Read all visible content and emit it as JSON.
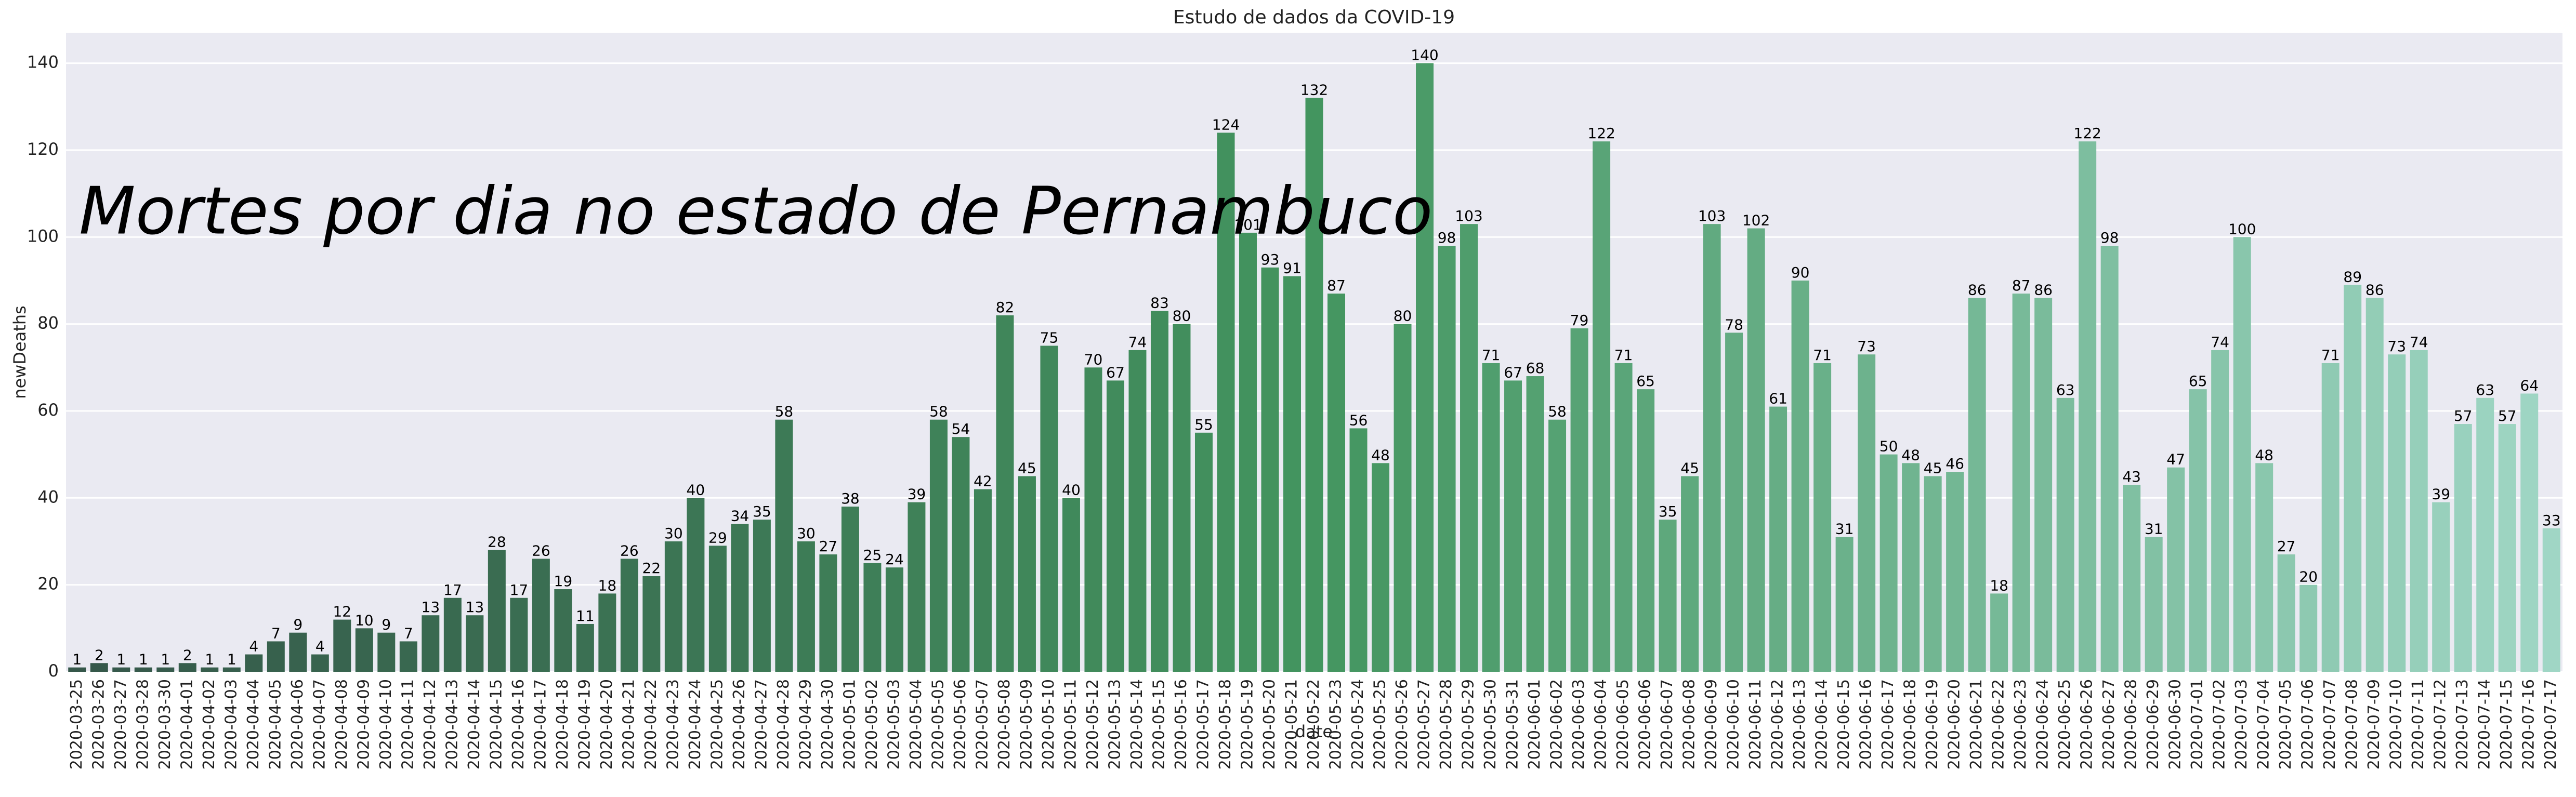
{
  "chart_data": {
    "type": "bar",
    "title": "Estudo de dados da COVID-19",
    "annotation": "Mortes por dia no estado de Pernambuco",
    "xlabel": "date",
    "ylabel": "newDeaths",
    "categories": [
      "2020-03-25",
      "2020-03-26",
      "2020-03-27",
      "2020-03-28",
      "2020-03-30",
      "2020-04-01",
      "2020-04-02",
      "2020-04-03",
      "2020-04-04",
      "2020-04-05",
      "2020-04-06",
      "2020-04-07",
      "2020-04-08",
      "2020-04-09",
      "2020-04-10",
      "2020-04-11",
      "2020-04-12",
      "2020-04-13",
      "2020-04-14",
      "2020-04-15",
      "2020-04-16",
      "2020-04-17",
      "2020-04-18",
      "2020-04-19",
      "2020-04-20",
      "2020-04-21",
      "2020-04-22",
      "2020-04-23",
      "2020-04-24",
      "2020-04-25",
      "2020-04-26",
      "2020-04-27",
      "2020-04-28",
      "2020-04-29",
      "2020-04-30",
      "2020-05-01",
      "2020-05-02",
      "2020-05-03",
      "2020-05-04",
      "2020-05-05",
      "2020-05-06",
      "2020-05-07",
      "2020-05-08",
      "2020-05-09",
      "2020-05-10",
      "2020-05-11",
      "2020-05-12",
      "2020-05-13",
      "2020-05-14",
      "2020-05-15",
      "2020-05-16",
      "2020-05-17",
      "2020-05-18",
      "2020-05-19",
      "2020-05-20",
      "2020-05-21",
      "2020-05-22",
      "2020-05-23",
      "2020-05-24",
      "2020-05-25",
      "2020-05-26",
      "2020-05-27",
      "2020-05-28",
      "2020-05-29",
      "2020-05-30",
      "2020-05-31",
      "2020-06-01",
      "2020-06-02",
      "2020-06-03",
      "2020-06-04",
      "2020-06-05",
      "2020-06-06",
      "2020-06-07",
      "2020-06-08",
      "2020-06-09",
      "2020-06-10",
      "2020-06-11",
      "2020-06-12",
      "2020-06-13",
      "2020-06-14",
      "2020-06-15",
      "2020-06-16",
      "2020-06-17",
      "2020-06-18",
      "2020-06-19",
      "2020-06-20",
      "2020-06-21",
      "2020-06-22",
      "2020-06-23",
      "2020-06-24",
      "2020-06-25",
      "2020-06-26",
      "2020-06-27",
      "2020-06-28",
      "2020-06-29",
      "2020-06-30",
      "2020-07-01",
      "2020-07-02",
      "2020-07-03",
      "2020-07-04",
      "2020-07-05",
      "2020-07-06",
      "2020-07-07",
      "2020-07-08",
      "2020-07-09",
      "2020-07-10",
      "2020-07-11",
      "2020-07-12",
      "2020-07-13",
      "2020-07-14",
      "2020-07-15",
      "2020-07-16",
      "2020-07-17"
    ],
    "values": [
      1,
      2,
      1,
      1,
      1,
      2,
      1,
      1,
      4,
      7,
      9,
      4,
      12,
      10,
      9,
      7,
      13,
      17,
      13,
      28,
      17,
      26,
      19,
      11,
      18,
      26,
      22,
      30,
      40,
      29,
      34,
      35,
      58,
      30,
      27,
      38,
      25,
      24,
      39,
      58,
      54,
      42,
      82,
      45,
      75,
      40,
      70,
      67,
      74,
      83,
      80,
      55,
      124,
      101,
      93,
      91,
      132,
      87,
      56,
      48,
      80,
      140,
      98,
      103,
      71,
      67,
      68,
      58,
      79,
      122,
      71,
      65,
      35,
      45,
      103,
      78,
      102,
      61,
      90,
      71,
      31,
      73,
      50,
      48,
      45,
      46,
      86,
      18,
      87,
      86,
      63,
      122,
      98,
      43,
      31,
      47,
      65,
      74,
      100,
      48,
      27,
      20,
      71,
      89,
      86,
      73,
      74,
      39,
      57,
      63,
      57,
      64,
      33
    ],
    "palette": [
      "#35574a",
      "#43955f",
      "#a0d6c5"
    ],
    "ylim": [
      0,
      147
    ],
    "yticks": [
      0,
      20,
      40,
      60,
      80,
      100,
      120,
      140
    ],
    "grid": true
  }
}
